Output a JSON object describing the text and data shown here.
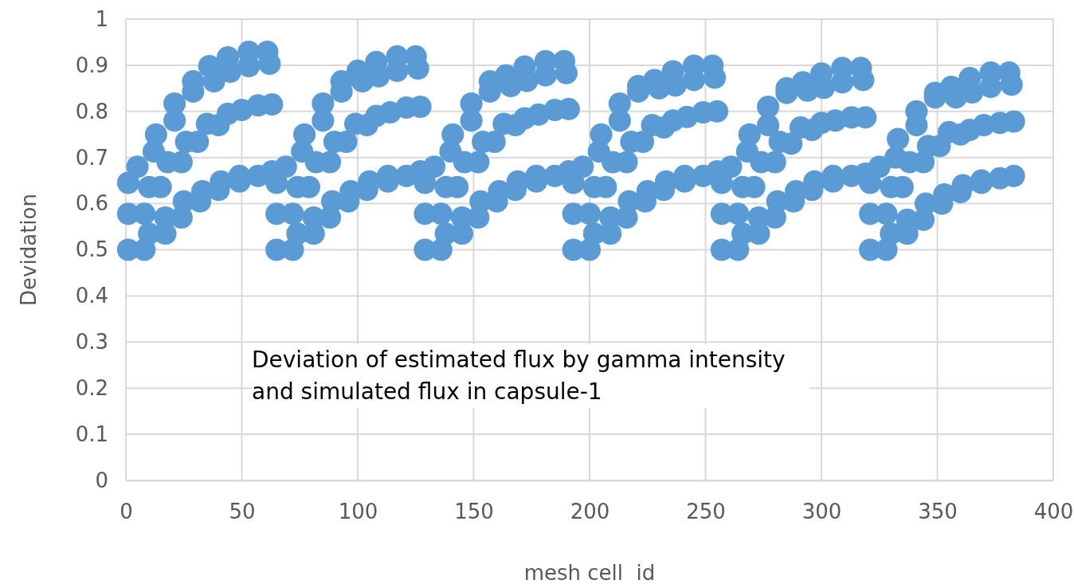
{
  "chart_data": {
    "type": "scatter",
    "xlabel": "mesh cell  id",
    "ylabel": "Devidation",
    "annotations": [
      "Deviation of estimated flux by gamma intensity and simulated flux in capsule-1"
    ],
    "xlim": [
      0,
      400
    ],
    "ylim": [
      0,
      1
    ],
    "xticks": [
      0,
      50,
      100,
      150,
      200,
      250,
      300,
      350,
      400
    ],
    "yticks": [
      0,
      0.1,
      0.2,
      0.3,
      0.4,
      0.5,
      0.6,
      0.7,
      0.8,
      0.9,
      1
    ],
    "grid": true,
    "marker": "circle",
    "series": [
      {
        "color": "#5b9bd5",
        "x": [
          1,
          1,
          1,
          5,
          8,
          8,
          10,
          10,
          12,
          13,
          15,
          17,
          17,
          18,
          21,
          21,
          24,
          24,
          25,
          26,
          29,
          29,
          31,
          32,
          33,
          35,
          36,
          38,
          40,
          40,
          41,
          44,
          44,
          45,
          49,
          49,
          50,
          53,
          53,
          57,
          57,
          61,
          62,
          63,
          63,
          65,
          65,
          65,
          69,
          72,
          72,
          74,
          74,
          76,
          77,
          79,
          81,
          81,
          82,
          85,
          85,
          88,
          88,
          89,
          90,
          93,
          93,
          95,
          96,
          97,
          99,
          100,
          102,
          104,
          104,
          105,
          108,
          108,
          109,
          113,
          113,
          114,
          117,
          117,
          121,
          121,
          125,
          126,
          127,
          127,
          129,
          129,
          129,
          133,
          136,
          136,
          138,
          138,
          140,
          141,
          143,
          145,
          145,
          146,
          149,
          149,
          152,
          152,
          153,
          154,
          157,
          157,
          159,
          160,
          161,
          163,
          164,
          166,
          168,
          168,
          169,
          172,
          172,
          173,
          177,
          177,
          178,
          181,
          181,
          185,
          185,
          189,
          190,
          191,
          191,
          193,
          193,
          193,
          197,
          200,
          200,
          202,
          202,
          204,
          205,
          207,
          209,
          209,
          210,
          213,
          213,
          216,
          216,
          217,
          218,
          221,
          221,
          223,
          224,
          225,
          227,
          228,
          230,
          232,
          232,
          233,
          236,
          236,
          237,
          241,
          241,
          242,
          245,
          245,
          249,
          249,
          253,
          254,
          255,
          255,
          257,
          257,
          257,
          261,
          264,
          264,
          266,
          266,
          268,
          269,
          271,
          273,
          273,
          274,
          277,
          277,
          280,
          280,
          281,
          282,
          285,
          285,
          287,
          288,
          289,
          291,
          292,
          294,
          296,
          296,
          297,
          300,
          300,
          301,
          305,
          305,
          306,
          309,
          309,
          313,
          313,
          317,
          318,
          319,
          319,
          321,
          321,
          321,
          325,
          328,
          328,
          330,
          330,
          332,
          333,
          335,
          337,
          337,
          338,
          341,
          341,
          344,
          344,
          345,
          346,
          349,
          349,
          351,
          352,
          353,
          355,
          356,
          358,
          360,
          360,
          361,
          364,
          364,
          365,
          369,
          369,
          370,
          373,
          373,
          377,
          377,
          381,
          382,
          383,
          383
        ],
        "values": [
          0.5,
          0.578,
          0.645,
          0.68,
          0.5,
          0.578,
          0.535,
          0.636,
          0.713,
          0.75,
          0.636,
          0.535,
          0.57,
          0.69,
          0.78,
          0.817,
          0.57,
          0.69,
          0.605,
          0.734,
          0.843,
          0.865,
          0.734,
          0.605,
          0.627,
          0.773,
          0.898,
          0.865,
          0.63,
          0.77,
          0.648,
          0.795,
          0.917,
          0.886,
          0.648,
          0.66,
          0.803,
          0.929,
          0.898,
          0.66,
          0.813,
          0.929,
          0.903,
          0.67,
          0.815,
          0.5,
          0.578,
          0.645,
          0.68,
          0.5,
          0.578,
          0.535,
          0.636,
          0.713,
          0.75,
          0.636,
          0.535,
          0.57,
          0.69,
          0.78,
          0.817,
          0.57,
          0.69,
          0.605,
          0.734,
          0.843,
          0.865,
          0.734,
          0.605,
          0.627,
          0.773,
          0.888,
          0.865,
          0.63,
          0.77,
          0.648,
          0.79,
          0.907,
          0.876,
          0.648,
          0.66,
          0.798,
          0.919,
          0.888,
          0.66,
          0.808,
          0.919,
          0.893,
          0.67,
          0.81,
          0.5,
          0.578,
          0.645,
          0.68,
          0.5,
          0.578,
          0.535,
          0.636,
          0.713,
          0.75,
          0.636,
          0.535,
          0.57,
          0.69,
          0.78,
          0.817,
          0.57,
          0.69,
          0.605,
          0.734,
          0.843,
          0.865,
          0.734,
          0.605,
          0.627,
          0.773,
          0.878,
          0.855,
          0.63,
          0.77,
          0.648,
          0.785,
          0.897,
          0.866,
          0.648,
          0.66,
          0.793,
          0.909,
          0.878,
          0.66,
          0.803,
          0.909,
          0.883,
          0.67,
          0.805,
          0.5,
          0.578,
          0.645,
          0.68,
          0.5,
          0.578,
          0.535,
          0.636,
          0.713,
          0.75,
          0.636,
          0.535,
          0.57,
          0.69,
          0.78,
          0.817,
          0.57,
          0.69,
          0.605,
          0.734,
          0.843,
          0.855,
          0.734,
          0.605,
          0.627,
          0.77,
          0.868,
          0.85,
          0.63,
          0.765,
          0.648,
          0.78,
          0.887,
          0.856,
          0.648,
          0.66,
          0.788,
          0.899,
          0.868,
          0.66,
          0.798,
          0.899,
          0.873,
          0.67,
          0.8,
          0.5,
          0.578,
          0.645,
          0.68,
          0.5,
          0.578,
          0.535,
          0.636,
          0.713,
          0.75,
          0.636,
          0.535,
          0.57,
          0.69,
          0.77,
          0.81,
          0.57,
          0.69,
          0.605,
          0.734,
          0.84,
          0.85,
          0.73,
          0.605,
          0.627,
          0.765,
          0.863,
          0.845,
          0.63,
          0.76,
          0.648,
          0.775,
          0.882,
          0.851,
          0.648,
          0.66,
          0.78,
          0.894,
          0.863,
          0.66,
          0.787,
          0.894,
          0.868,
          0.665,
          0.787,
          0.5,
          0.578,
          0.645,
          0.68,
          0.5,
          0.578,
          0.535,
          0.636,
          0.7,
          0.74,
          0.636,
          0.535,
          0.565,
          0.69,
          0.77,
          0.8,
          0.565,
          0.69,
          0.6,
          0.725,
          0.83,
          0.84,
          0.725,
          0.6,
          0.62,
          0.755,
          0.853,
          0.83,
          0.625,
          0.75,
          0.64,
          0.76,
          0.872,
          0.841,
          0.645,
          0.65,
          0.77,
          0.884,
          0.853,
          0.655,
          0.775,
          0.884,
          0.858,
          0.66,
          0.778
        ]
      }
    ]
  }
}
